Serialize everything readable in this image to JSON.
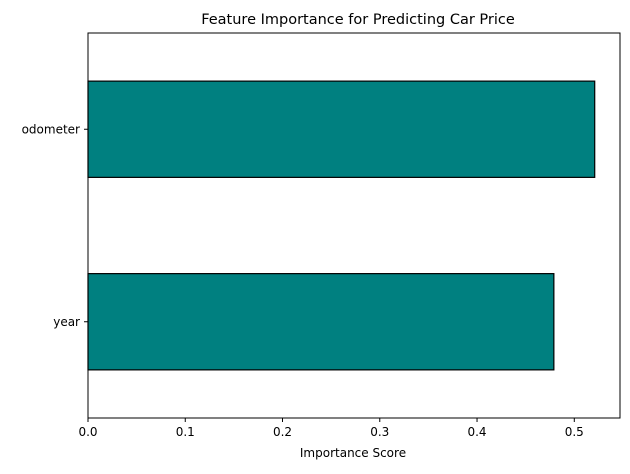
{
  "chart_data": {
    "type": "bar",
    "orientation": "horizontal",
    "title": "Feature Importance for Predicting Car Price",
    "xlabel": "Importance Score",
    "ylabel": "",
    "categories": [
      "year",
      "odometer"
    ],
    "values": [
      0.479,
      0.521
    ],
    "xlim": [
      0,
      0.547
    ],
    "x_ticks": [
      0.0,
      0.1,
      0.2,
      0.3,
      0.4,
      0.5
    ],
    "x_tick_labels": [
      "0.0",
      "0.1",
      "0.2",
      "0.3",
      "0.4",
      "0.5"
    ],
    "grid": false,
    "legend": "none",
    "colors": {
      "bar_fill": "#008080",
      "bar_edge": "#000000"
    }
  }
}
